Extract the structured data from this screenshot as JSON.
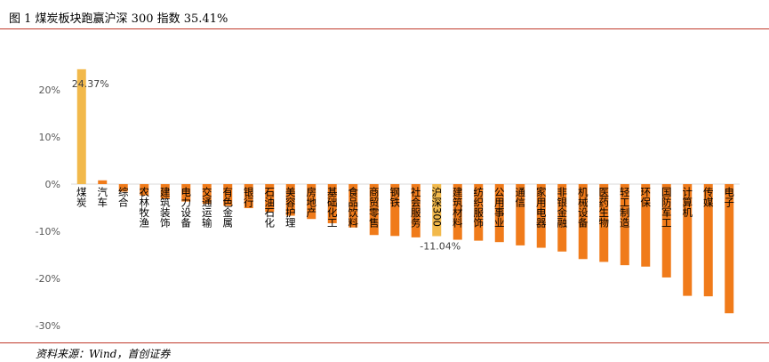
{
  "header": {
    "title": "图 1 煤炭板块跑赢沪深 300 指数 35.41%"
  },
  "footer": {
    "source": "资料来源：Wind，首创证券"
  },
  "colors": {
    "bar_default": "#f07b1a",
    "bar_highlight": "#f2b94b",
    "rule": "#c0392b",
    "zero_line": "#d9d9d9"
  },
  "chart_data": {
    "type": "bar",
    "title": "",
    "xlabel": "",
    "ylabel": "",
    "ylim": [
      -30,
      25
    ],
    "ytick_labels": [
      "20%",
      "10%",
      "0%",
      "-10%",
      "-20%",
      "-30%"
    ],
    "ytick_values": [
      20,
      10,
      0,
      -10,
      -20,
      -30
    ],
    "grid": false,
    "legend": "none",
    "categories": [
      "煤炭",
      "汽车",
      "综合",
      "农林牧渔",
      "建筑装饰",
      "电力设备",
      "交通运输",
      "有色金属",
      "银行",
      "石油石化",
      "美容护理",
      "房地产",
      "基础化工",
      "食品饮料",
      "商贸零售",
      "钢铁",
      "社会服务",
      "沪深300",
      "建筑材料",
      "纺织服饰",
      "公用事业",
      "通信",
      "家用电器",
      "非银金融",
      "机械设备",
      "医药生物",
      "轻工制造",
      "环保",
      "国防军工",
      "计算机",
      "传媒",
      "电子"
    ],
    "values": [
      24.37,
      0.8,
      -1.6,
      -2.4,
      -3.1,
      -3.7,
      -4.2,
      -4.6,
      -5.1,
      -5.9,
      -6.7,
      -7.4,
      -8.3,
      -9.2,
      -10.8,
      -11.0,
      -11.3,
      -11.04,
      -11.8,
      -12.0,
      -12.3,
      -13.0,
      -13.5,
      -14.3,
      -15.9,
      -16.5,
      -17.2,
      -17.5,
      -19.8,
      -23.7,
      -23.8,
      -27.4
    ],
    "highlight": [
      "煤炭",
      "沪深300"
    ],
    "data_labels": [
      {
        "category": "煤炭",
        "text": "24.37%"
      },
      {
        "category": "沪深300",
        "text": "-11.04%"
      }
    ]
  }
}
